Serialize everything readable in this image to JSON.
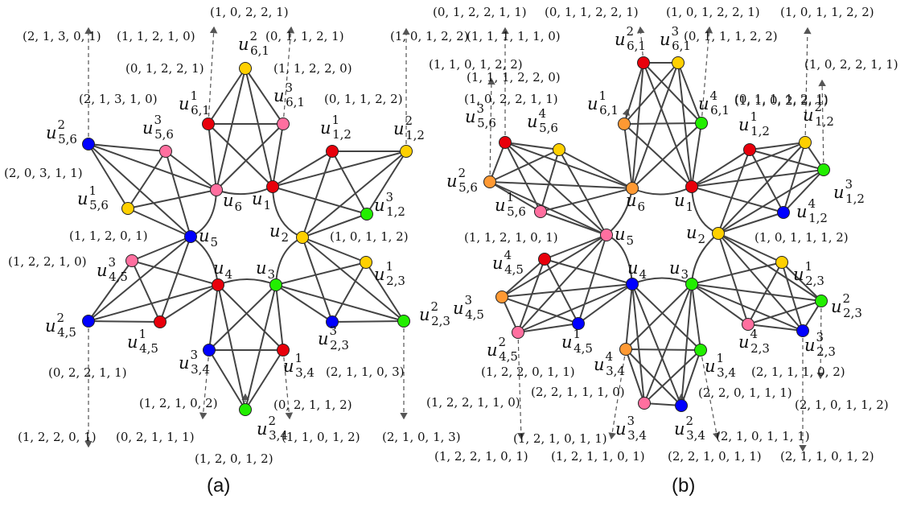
{
  "colors": {
    "red": "#e8000b",
    "yellow": "#ffd000",
    "green": "#22ee00",
    "blue": "#0000ff",
    "pink": "#ff6f9f",
    "orange": "#ff9933"
  },
  "panels": [
    {
      "caption": "(a)",
      "nodes": [
        {
          "id": "u1",
          "name": "u",
          "sup": "",
          "sub": "1",
          "color": "red"
        },
        {
          "id": "u2",
          "name": "u",
          "sup": "",
          "sub": "2",
          "color": "yellow"
        },
        {
          "id": "u3",
          "name": "u",
          "sup": "",
          "sub": "3",
          "color": "green"
        },
        {
          "id": "u4",
          "name": "u",
          "sup": "",
          "sub": "4",
          "color": "red"
        },
        {
          "id": "u5",
          "name": "u",
          "sup": "",
          "sub": "5",
          "color": "blue"
        },
        {
          "id": "u6",
          "name": "u",
          "sup": "",
          "sub": "6",
          "color": "pink"
        },
        {
          "id": "u12_1",
          "name": "u",
          "sup": "1",
          "sub": "1,2",
          "color": "red"
        },
        {
          "id": "u12_2",
          "name": "u",
          "sup": "2",
          "sub": "1,2",
          "color": "yellow"
        },
        {
          "id": "u12_3",
          "name": "u",
          "sup": "3",
          "sub": "1,2",
          "color": "green"
        },
        {
          "id": "u23_1",
          "name": "u",
          "sup": "1",
          "sub": "2,3",
          "color": "yellow"
        },
        {
          "id": "u23_2",
          "name": "u",
          "sup": "2",
          "sub": "2,3",
          "color": "green"
        },
        {
          "id": "u23_3",
          "name": "u",
          "sup": "3",
          "sub": "2,3",
          "color": "blue"
        },
        {
          "id": "u34_1",
          "name": "u",
          "sup": "1",
          "sub": "3,4",
          "color": "red"
        },
        {
          "id": "u34_2",
          "name": "u",
          "sup": "2",
          "sub": "3,4",
          "color": "green"
        },
        {
          "id": "u34_3",
          "name": "u",
          "sup": "3",
          "sub": "3,4",
          "color": "blue"
        },
        {
          "id": "u45_1",
          "name": "u",
          "sup": "1",
          "sub": "4,5",
          "color": "red"
        },
        {
          "id": "u45_2",
          "name": "u",
          "sup": "2",
          "sub": "4,5",
          "color": "blue"
        },
        {
          "id": "u45_3",
          "name": "u",
          "sup": "3",
          "sub": "4,5",
          "color": "pink"
        },
        {
          "id": "u56_1",
          "name": "u",
          "sup": "1",
          "sub": "5,6",
          "color": "yellow"
        },
        {
          "id": "u56_2",
          "name": "u",
          "sup": "2",
          "sub": "5,6",
          "color": "blue"
        },
        {
          "id": "u56_3",
          "name": "u",
          "sup": "3",
          "sub": "5,6",
          "color": "pink"
        },
        {
          "id": "u61_1",
          "name": "u",
          "sup": "1",
          "sub": "6,1",
          "color": "red"
        },
        {
          "id": "u61_2",
          "name": "u",
          "sup": "2",
          "sub": "6,1",
          "color": "yellow"
        },
        {
          "id": "u61_3",
          "name": "u",
          "sup": "3",
          "sub": "6,1",
          "color": "pink"
        }
      ],
      "groups": [
        [
          "u1",
          "u2",
          "u12_1",
          "u12_2",
          "u12_3"
        ],
        [
          "u2",
          "u3",
          "u23_1",
          "u23_2",
          "u23_3"
        ],
        [
          "u3",
          "u4",
          "u34_1",
          "u34_2",
          "u34_3"
        ],
        [
          "u4",
          "u5",
          "u45_1",
          "u45_2",
          "u45_3"
        ],
        [
          "u5",
          "u6",
          "u56_1",
          "u56_2",
          "u56_3"
        ],
        [
          "u6",
          "u1",
          "u61_1",
          "u61_2",
          "u61_3"
        ]
      ],
      "tuples": [
        "(1, 0, 2, 2, 1)",
        "(2, 1, 3, 0, 1)",
        "(1, 1, 2, 1, 0)",
        "(0, 1, 1, 2, 1)",
        "(1, 0, 1, 2, 2)",
        "(0, 1, 2, 2, 1)",
        "(1, 1, 2, 2, 0)",
        "(2, 1, 3, 1, 0)",
        "(0, 1, 1, 2, 2)",
        "(2, 0, 3, 1, 1)",
        "(1, 1, 2, 0, 1)",
        "(1, 0, 1, 1, 2)",
        "(1, 2, 2, 1, 0)",
        "(0, 2, 2, 1, 1)",
        "(2, 1, 1, 0, 3)",
        "(1, 2, 1, 0, 2)",
        "(0, 2, 1, 1, 2)",
        "(1, 2, 2, 0, 1)",
        "(0, 2, 1, 1, 1)",
        "(1, 1, 0, 1, 2)",
        "(2, 1, 0, 1, 3)",
        "(1, 2, 0, 1, 2)"
      ]
    },
    {
      "caption": "(b)",
      "nodes": [
        {
          "id": "u1",
          "name": "u",
          "sup": "",
          "sub": "1",
          "color": "red"
        },
        {
          "id": "u2",
          "name": "u",
          "sup": "",
          "sub": "2",
          "color": "yellow"
        },
        {
          "id": "u3",
          "name": "u",
          "sup": "",
          "sub": "3",
          "color": "green"
        },
        {
          "id": "u4",
          "name": "u",
          "sup": "",
          "sub": "4",
          "color": "blue"
        },
        {
          "id": "u5",
          "name": "u",
          "sup": "",
          "sub": "5",
          "color": "pink"
        },
        {
          "id": "u6",
          "name": "u",
          "sup": "",
          "sub": "6",
          "color": "orange"
        },
        {
          "id": "u12_1",
          "name": "u",
          "sup": "1",
          "sub": "1,2",
          "color": "red"
        },
        {
          "id": "u12_2",
          "name": "u",
          "sup": "2",
          "sub": "1,2",
          "color": "yellow"
        },
        {
          "id": "u12_3",
          "name": "u",
          "sup": "3",
          "sub": "1,2",
          "color": "green"
        },
        {
          "id": "u12_4",
          "name": "u",
          "sup": "4",
          "sub": "1,2",
          "color": "blue"
        },
        {
          "id": "u23_1",
          "name": "u",
          "sup": "1",
          "sub": "2,3",
          "color": "yellow"
        },
        {
          "id": "u23_2",
          "name": "u",
          "sup": "2",
          "sub": "2,3",
          "color": "green"
        },
        {
          "id": "u23_3",
          "name": "u",
          "sup": "3",
          "sub": "2,3",
          "color": "blue"
        },
        {
          "id": "u23_4",
          "name": "u",
          "sup": "4",
          "sub": "2,3",
          "color": "pink"
        },
        {
          "id": "u34_1",
          "name": "u",
          "sup": "1",
          "sub": "3,4",
          "color": "green"
        },
        {
          "id": "u34_2",
          "name": "u",
          "sup": "2",
          "sub": "3,4",
          "color": "blue"
        },
        {
          "id": "u34_3",
          "name": "u",
          "sup": "3",
          "sub": "3,4",
          "color": "pink"
        },
        {
          "id": "u34_4",
          "name": "u",
          "sup": "4",
          "sub": "3,4",
          "color": "orange"
        },
        {
          "id": "u45_1",
          "name": "u",
          "sup": "1",
          "sub": "4,5",
          "color": "blue"
        },
        {
          "id": "u45_2",
          "name": "u",
          "sup": "2",
          "sub": "4,5",
          "color": "pink"
        },
        {
          "id": "u45_3",
          "name": "u",
          "sup": "3",
          "sub": "4,5",
          "color": "orange"
        },
        {
          "id": "u45_4",
          "name": "u",
          "sup": "4",
          "sub": "4,5",
          "color": "red"
        },
        {
          "id": "u56_1",
          "name": "u",
          "sup": "1",
          "sub": "5,6",
          "color": "pink"
        },
        {
          "id": "u56_2",
          "name": "u",
          "sup": "2",
          "sub": "5,6",
          "color": "orange"
        },
        {
          "id": "u56_3",
          "name": "u",
          "sup": "3",
          "sub": "5,6",
          "color": "red"
        },
        {
          "id": "u56_4",
          "name": "u",
          "sup": "4",
          "sub": "5,6",
          "color": "yellow"
        },
        {
          "id": "u61_1",
          "name": "u",
          "sup": "1",
          "sub": "6,1",
          "color": "orange"
        },
        {
          "id": "u61_2",
          "name": "u",
          "sup": "2",
          "sub": "6,1",
          "color": "red"
        },
        {
          "id": "u61_3",
          "name": "u",
          "sup": "3",
          "sub": "6,1",
          "color": "yellow"
        },
        {
          "id": "u61_4",
          "name": "u",
          "sup": "4",
          "sub": "6,1",
          "color": "green"
        }
      ],
      "groups": [
        [
          "u1",
          "u2",
          "u12_1",
          "u12_2",
          "u12_3",
          "u12_4"
        ],
        [
          "u2",
          "u3",
          "u23_1",
          "u23_2",
          "u23_3",
          "u23_4"
        ],
        [
          "u3",
          "u4",
          "u34_1",
          "u34_2",
          "u34_3",
          "u34_4"
        ],
        [
          "u4",
          "u5",
          "u45_1",
          "u45_2",
          "u45_3",
          "u45_4"
        ],
        [
          "u5",
          "u6",
          "u56_1",
          "u56_2",
          "u56_3",
          "u56_4"
        ],
        [
          "u6",
          "u1",
          "u61_1",
          "u61_2",
          "u61_3",
          "u61_4"
        ]
      ],
      "tuples": [
        "(0, 1, 2, 2, 1, 1)",
        "(0, 1, 1, 2, 2, 1)",
        "(1, 0, 1, 2, 2, 1)",
        "(1, 0, 1, 1, 2, 2)",
        "(1, 1, 1, 1, 1, 0)",
        "(0, 1, 1, 1, 2, 2)",
        "(1, 1, 0, 1, 2, 2)",
        "(1, 0, 2, 2, 1, 1)",
        "(1, 1, 1, 2, 2, 0)",
        "(1, 1, 0, 2, 2, 1)",
        "(1, 0, 2, 2, 1, 1)",
        "(0, 1, 1, 1, 2, 1)",
        "(1, 1, 2, 1, 0, 1)",
        "(1, 0, 1, 1, 1, 2)",
        "(1, 2, 2, 0, 1, 1)",
        "(2, 1, 1, 1, 0, 2)",
        "(1, 2, 2, 1, 1, 0)",
        "(2, 2, 1, 1, 1, 0)",
        "(2, 2, 0, 1, 1, 1)",
        "(2, 1, 0, 1, 1, 2)",
        "(1, 2, 1, 0, 1, 1)",
        "(2, 1, 0, 1, 1, 1)",
        "(1, 2, 2, 1, 0, 1)",
        "(1, 2, 1, 1, 0, 1)",
        "(2, 2, 1, 0, 1, 1)",
        "(2, 1, 1, 0, 1, 2)"
      ]
    }
  ]
}
